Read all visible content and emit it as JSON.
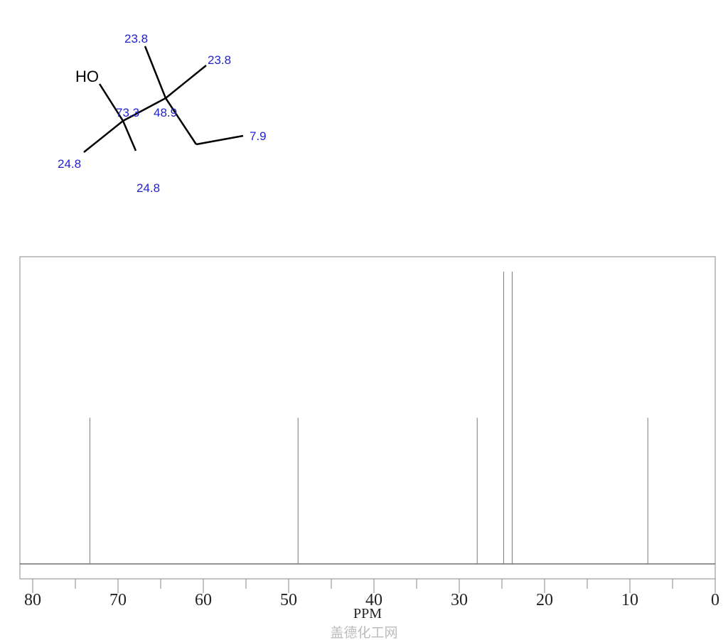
{
  "structure": {
    "atom_label": "HO",
    "shift_labels": [
      "23.8",
      "23.8",
      "73.3",
      "48.9",
      "7.9",
      "24.8",
      "24.8"
    ]
  },
  "chart_data": {
    "type": "bar",
    "title": "",
    "xlabel": "PPM",
    "ylabel": "",
    "xlim": [
      80,
      0
    ],
    "x_reversed": true,
    "grid": false,
    "xticks": [
      "80",
      "70",
      "60",
      "50",
      "40",
      "30",
      "20",
      "10",
      "0"
    ],
    "peaks": [
      {
        "ppm": 73.3,
        "intensity": 0.5
      },
      {
        "ppm": 48.9,
        "intensity": 0.5
      },
      {
        "ppm": 27.9,
        "intensity": 0.5
      },
      {
        "ppm": 24.8,
        "intensity": 1.0
      },
      {
        "ppm": 23.8,
        "intensity": 1.0
      },
      {
        "ppm": 7.9,
        "intensity": 0.5
      }
    ]
  },
  "watermark": "盖德化工网"
}
